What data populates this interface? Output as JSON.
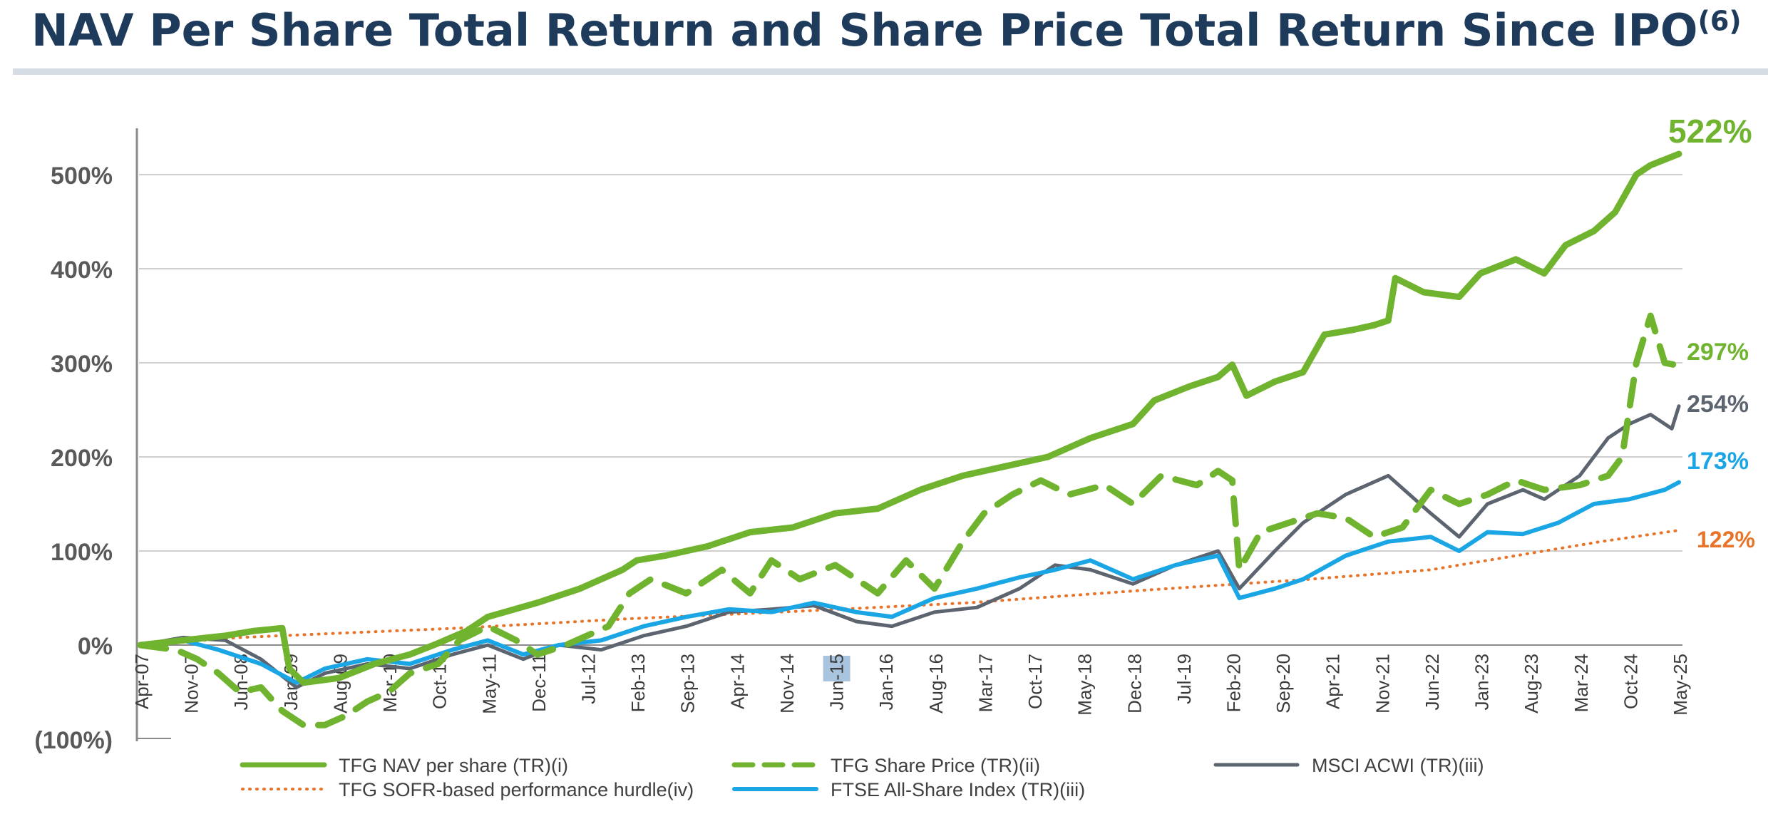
{
  "page": {
    "title": "NAV Per Share Total Return and Share Price Total Return Since IPO",
    "title_footnote": "(6)"
  },
  "chart_data": {
    "type": "line",
    "title": "NAV Per Share Total Return and Share Price Total Return Since IPO(6)",
    "xlabel": "",
    "ylabel": "",
    "ylim": [
      -100,
      550
    ],
    "y_ticks": [
      -100,
      0,
      100,
      200,
      300,
      400,
      500
    ],
    "y_tick_labels": [
      "(100%)",
      "0%",
      "100%",
      "200%",
      "300%",
      "400%",
      "500%"
    ],
    "x_range": [
      "2007-04",
      "2025-05"
    ],
    "x_ticks": [
      "2007-04",
      "2007-11",
      "2008-06",
      "2009-01",
      "2009-08",
      "2010-03",
      "2010-10",
      "2011-05",
      "2011-12",
      "2012-07",
      "2013-02",
      "2013-09",
      "2014-04",
      "2014-11",
      "2015-06",
      "2016-01",
      "2016-08",
      "2017-03",
      "2017-10",
      "2018-05",
      "2018-12",
      "2019-07",
      "2020-02",
      "2020-09",
      "2021-04",
      "2021-11",
      "2022-06",
      "2023-01",
      "2023-08",
      "2024-03",
      "2024-10",
      "2025-05"
    ],
    "x_tick_labels": [
      "Apr-07",
      "Nov-07",
      "Jun-08",
      "Jan-09",
      "Aug-09",
      "Mar-10",
      "Oct-10",
      "May-11",
      "Dec-11",
      "Jul-12",
      "Feb-13",
      "Sep-13",
      "Apr-14",
      "Nov-14",
      "Jun-15",
      "Jan-16",
      "Aug-16",
      "Mar-17",
      "Oct-17",
      "May-18",
      "Dec-18",
      "Jul-19",
      "Feb-20",
      "Sep-20",
      "Apr-21",
      "Nov-21",
      "Jun-22",
      "Jan-23",
      "Aug-23",
      "Mar-24",
      "Oct-24",
      "May-25"
    ],
    "highlighted_tick": "Jun-15",
    "grid": "horizontal",
    "legend_position": "bottom",
    "series": [
      {
        "name": "TFG NAV per share (TR)(i)",
        "color": "#6fb32e",
        "style": "solid-thick",
        "end_label": "522%",
        "points": [
          [
            "2007-04",
            0
          ],
          [
            "2007-10",
            5
          ],
          [
            "2008-04",
            10
          ],
          [
            "2008-08",
            15
          ],
          [
            "2008-12",
            18
          ],
          [
            "2009-01",
            -25
          ],
          [
            "2009-03",
            -40
          ],
          [
            "2009-08",
            -35
          ],
          [
            "2010-01",
            -20
          ],
          [
            "2010-06",
            -10
          ],
          [
            "2010-10",
            2
          ],
          [
            "2011-02",
            15
          ],
          [
            "2011-05",
            30
          ],
          [
            "2011-12",
            45
          ],
          [
            "2012-06",
            60
          ],
          [
            "2012-12",
            80
          ],
          [
            "2013-02",
            90
          ],
          [
            "2013-06",
            95
          ],
          [
            "2013-12",
            105
          ],
          [
            "2014-06",
            120
          ],
          [
            "2014-12",
            125
          ],
          [
            "2015-06",
            140
          ],
          [
            "2015-12",
            145
          ],
          [
            "2016-06",
            165
          ],
          [
            "2016-12",
            180
          ],
          [
            "2017-06",
            190
          ],
          [
            "2017-12",
            200
          ],
          [
            "2018-06",
            220
          ],
          [
            "2018-12",
            235
          ],
          [
            "2019-03",
            260
          ],
          [
            "2019-08",
            275
          ],
          [
            "2019-12",
            285
          ],
          [
            "2020-02",
            298
          ],
          [
            "2020-04",
            265
          ],
          [
            "2020-08",
            280
          ],
          [
            "2020-12",
            290
          ],
          [
            "2021-03",
            330
          ],
          [
            "2021-07",
            335
          ],
          [
            "2021-10",
            340
          ],
          [
            "2021-12",
            345
          ],
          [
            "2022-01",
            390
          ],
          [
            "2022-05",
            375
          ],
          [
            "2022-10",
            370
          ],
          [
            "2023-01",
            395
          ],
          [
            "2023-06",
            410
          ],
          [
            "2023-10",
            395
          ],
          [
            "2024-01",
            425
          ],
          [
            "2024-05",
            440
          ],
          [
            "2024-08",
            460
          ],
          [
            "2024-11",
            500
          ],
          [
            "2025-01",
            510
          ],
          [
            "2025-05",
            522
          ]
        ]
      },
      {
        "name": "TFG Share Price (TR)(ii)",
        "color": "#6fb32e",
        "style": "dashed-thick",
        "end_label": "297%",
        "points": [
          [
            "2007-04",
            0
          ],
          [
            "2007-09",
            -5
          ],
          [
            "2007-12",
            -15
          ],
          [
            "2008-03",
            -30
          ],
          [
            "2008-06",
            -50
          ],
          [
            "2008-09",
            -45
          ],
          [
            "2008-12",
            -70
          ],
          [
            "2009-03",
            -85
          ],
          [
            "2009-06",
            -85
          ],
          [
            "2009-09",
            -75
          ],
          [
            "2009-12",
            -60
          ],
          [
            "2010-03",
            -50
          ],
          [
            "2010-06",
            -30
          ],
          [
            "2010-10",
            -20
          ],
          [
            "2011-01",
            5
          ],
          [
            "2011-05",
            20
          ],
          [
            "2011-09",
            5
          ],
          [
            "2011-12",
            -10
          ],
          [
            "2012-04",
            0
          ],
          [
            "2012-10",
            20
          ],
          [
            "2013-01",
            55
          ],
          [
            "2013-04",
            70
          ],
          [
            "2013-09",
            55
          ],
          [
            "2014-02",
            80
          ],
          [
            "2014-06",
            55
          ],
          [
            "2014-09",
            90
          ],
          [
            "2015-01",
            70
          ],
          [
            "2015-06",
            85
          ],
          [
            "2015-09",
            70
          ],
          [
            "2015-12",
            55
          ],
          [
            "2016-04",
            90
          ],
          [
            "2016-08",
            60
          ],
          [
            "2016-12",
            110
          ],
          [
            "2017-03",
            140
          ],
          [
            "2017-07",
            160
          ],
          [
            "2017-11",
            175
          ],
          [
            "2018-03",
            160
          ],
          [
            "2018-08",
            170
          ],
          [
            "2018-12",
            150
          ],
          [
            "2019-04",
            180
          ],
          [
            "2019-09",
            170
          ],
          [
            "2019-12",
            185
          ],
          [
            "2020-02",
            175
          ],
          [
            "2020-03",
            80
          ],
          [
            "2020-06",
            120
          ],
          [
            "2020-10",
            130
          ],
          [
            "2021-02",
            140
          ],
          [
            "2021-06",
            135
          ],
          [
            "2021-10",
            115
          ],
          [
            "2022-02",
            125
          ],
          [
            "2022-06",
            165
          ],
          [
            "2022-10",
            150
          ],
          [
            "2023-02",
            160
          ],
          [
            "2023-06",
            175
          ],
          [
            "2023-10",
            165
          ],
          [
            "2024-03",
            170
          ],
          [
            "2024-07",
            180
          ],
          [
            "2024-09",
            200
          ],
          [
            "2024-11",
            300
          ],
          [
            "2025-01",
            350
          ],
          [
            "2025-03",
            300
          ],
          [
            "2025-05",
            297
          ]
        ]
      },
      {
        "name": "MSCI ACWI (TR)(iii)",
        "color": "#5c6470",
        "style": "solid",
        "end_label": "254%",
        "points": [
          [
            "2007-04",
            0
          ],
          [
            "2007-10",
            8
          ],
          [
            "2008-04",
            5
          ],
          [
            "2008-09",
            -15
          ],
          [
            "2009-02",
            -45
          ],
          [
            "2009-06",
            -30
          ],
          [
            "2009-12",
            -20
          ],
          [
            "2010-06",
            -25
          ],
          [
            "2010-12",
            -10
          ],
          [
            "2011-05",
            0
          ],
          [
            "2011-10",
            -15
          ],
          [
            "2012-03",
            0
          ],
          [
            "2012-09",
            -5
          ],
          [
            "2013-03",
            10
          ],
          [
            "2013-09",
            20
          ],
          [
            "2014-03",
            35
          ],
          [
            "2014-09",
            38
          ],
          [
            "2015-03",
            42
          ],
          [
            "2015-09",
            25
          ],
          [
            "2016-02",
            20
          ],
          [
            "2016-08",
            35
          ],
          [
            "2017-02",
            40
          ],
          [
            "2017-08",
            60
          ],
          [
            "2018-01",
            85
          ],
          [
            "2018-06",
            80
          ],
          [
            "2018-12",
            65
          ],
          [
            "2019-06",
            85
          ],
          [
            "2019-12",
            100
          ],
          [
            "2020-03",
            60
          ],
          [
            "2020-08",
            100
          ],
          [
            "2020-12",
            130
          ],
          [
            "2021-06",
            160
          ],
          [
            "2021-12",
            180
          ],
          [
            "2022-06",
            140
          ],
          [
            "2022-10",
            115
          ],
          [
            "2023-02",
            150
          ],
          [
            "2023-07",
            165
          ],
          [
            "2023-10",
            155
          ],
          [
            "2024-03",
            180
          ],
          [
            "2024-07",
            220
          ],
          [
            "2024-10",
            235
          ],
          [
            "2025-01",
            245
          ],
          [
            "2025-04",
            230
          ],
          [
            "2025-05",
            254
          ]
        ]
      },
      {
        "name": "TFG SOFR-based performance hurdle(iv)",
        "color": "#e8742a",
        "style": "dotted",
        "end_label": "122%",
        "points": [
          [
            "2007-04",
            0
          ],
          [
            "2008-06",
            8
          ],
          [
            "2009-06",
            12
          ],
          [
            "2011-01",
            18
          ],
          [
            "2013-01",
            28
          ],
          [
            "2015-01",
            36
          ],
          [
            "2017-01",
            45
          ],
          [
            "2019-01",
            58
          ],
          [
            "2021-01",
            70
          ],
          [
            "2022-06",
            80
          ],
          [
            "2023-06",
            95
          ],
          [
            "2024-06",
            110
          ],
          [
            "2025-05",
            122
          ]
        ]
      },
      {
        "name": "FTSE All-Share Index (TR)(iii)",
        "color": "#1aa6e4",
        "style": "solid-medium",
        "end_label": "173%",
        "points": [
          [
            "2007-04",
            0
          ],
          [
            "2007-10",
            5
          ],
          [
            "2008-03",
            -5
          ],
          [
            "2008-09",
            -20
          ],
          [
            "2009-02",
            -40
          ],
          [
            "2009-06",
            -25
          ],
          [
            "2009-12",
            -15
          ],
          [
            "2010-06",
            -20
          ],
          [
            "2010-12",
            -5
          ],
          [
            "2011-05",
            5
          ],
          [
            "2011-10",
            -10
          ],
          [
            "2012-03",
            0
          ],
          [
            "2012-09",
            5
          ],
          [
            "2013-03",
            20
          ],
          [
            "2013-09",
            30
          ],
          [
            "2014-03",
            38
          ],
          [
            "2014-09",
            35
          ],
          [
            "2015-03",
            45
          ],
          [
            "2015-09",
            35
          ],
          [
            "2016-02",
            30
          ],
          [
            "2016-08",
            50
          ],
          [
            "2017-02",
            60
          ],
          [
            "2017-08",
            72
          ],
          [
            "2018-01",
            80
          ],
          [
            "2018-06",
            90
          ],
          [
            "2018-12",
            70
          ],
          [
            "2019-06",
            85
          ],
          [
            "2019-12",
            95
          ],
          [
            "2020-03",
            50
          ],
          [
            "2020-08",
            60
          ],
          [
            "2020-12",
            70
          ],
          [
            "2021-06",
            95
          ],
          [
            "2021-12",
            110
          ],
          [
            "2022-06",
            115
          ],
          [
            "2022-10",
            100
          ],
          [
            "2023-02",
            120
          ],
          [
            "2023-07",
            118
          ],
          [
            "2023-12",
            130
          ],
          [
            "2024-05",
            150
          ],
          [
            "2024-10",
            155
          ],
          [
            "2025-03",
            165
          ],
          [
            "2025-05",
            173
          ]
        ]
      }
    ]
  }
}
